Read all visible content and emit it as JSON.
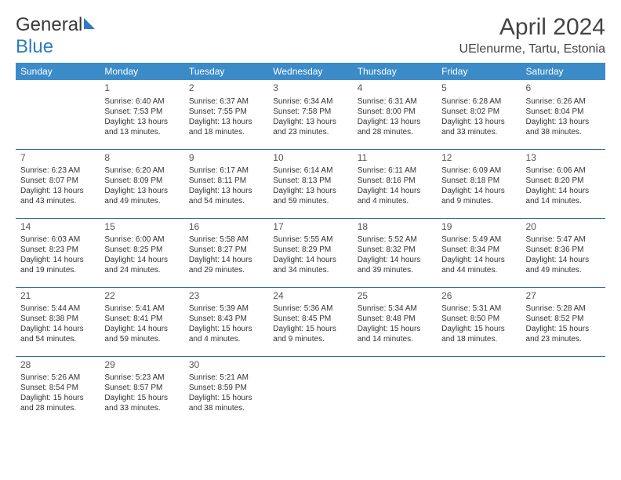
{
  "logo": {
    "word1": "General",
    "word2": "Blue"
  },
  "title": "April 2024",
  "location": "UElenurme, Tartu, Estonia",
  "colors": {
    "header_bg": "#3b8bc9",
    "header_fg": "#ffffff",
    "row_divider": "#2f6fa3",
    "logo_blue": "#2f7bbf",
    "text": "#333333"
  },
  "weekday_labels": [
    "Sunday",
    "Monday",
    "Tuesday",
    "Wednesday",
    "Thursday",
    "Friday",
    "Saturday"
  ],
  "weeks": [
    [
      null,
      {
        "day": "1",
        "sunrise": "Sunrise: 6:40 AM",
        "sunset": "Sunset: 7:53 PM",
        "daylight": "Daylight: 13 hours and 13 minutes."
      },
      {
        "day": "2",
        "sunrise": "Sunrise: 6:37 AM",
        "sunset": "Sunset: 7:55 PM",
        "daylight": "Daylight: 13 hours and 18 minutes."
      },
      {
        "day": "3",
        "sunrise": "Sunrise: 6:34 AM",
        "sunset": "Sunset: 7:58 PM",
        "daylight": "Daylight: 13 hours and 23 minutes."
      },
      {
        "day": "4",
        "sunrise": "Sunrise: 6:31 AM",
        "sunset": "Sunset: 8:00 PM",
        "daylight": "Daylight: 13 hours and 28 minutes."
      },
      {
        "day": "5",
        "sunrise": "Sunrise: 6:28 AM",
        "sunset": "Sunset: 8:02 PM",
        "daylight": "Daylight: 13 hours and 33 minutes."
      },
      {
        "day": "6",
        "sunrise": "Sunrise: 6:26 AM",
        "sunset": "Sunset: 8:04 PM",
        "daylight": "Daylight: 13 hours and 38 minutes."
      }
    ],
    [
      {
        "day": "7",
        "sunrise": "Sunrise: 6:23 AM",
        "sunset": "Sunset: 8:07 PM",
        "daylight": "Daylight: 13 hours and 43 minutes."
      },
      {
        "day": "8",
        "sunrise": "Sunrise: 6:20 AM",
        "sunset": "Sunset: 8:09 PM",
        "daylight": "Daylight: 13 hours and 49 minutes."
      },
      {
        "day": "9",
        "sunrise": "Sunrise: 6:17 AM",
        "sunset": "Sunset: 8:11 PM",
        "daylight": "Daylight: 13 hours and 54 minutes."
      },
      {
        "day": "10",
        "sunrise": "Sunrise: 6:14 AM",
        "sunset": "Sunset: 8:13 PM",
        "daylight": "Daylight: 13 hours and 59 minutes."
      },
      {
        "day": "11",
        "sunrise": "Sunrise: 6:11 AM",
        "sunset": "Sunset: 8:16 PM",
        "daylight": "Daylight: 14 hours and 4 minutes."
      },
      {
        "day": "12",
        "sunrise": "Sunrise: 6:09 AM",
        "sunset": "Sunset: 8:18 PM",
        "daylight": "Daylight: 14 hours and 9 minutes."
      },
      {
        "day": "13",
        "sunrise": "Sunrise: 6:06 AM",
        "sunset": "Sunset: 8:20 PM",
        "daylight": "Daylight: 14 hours and 14 minutes."
      }
    ],
    [
      {
        "day": "14",
        "sunrise": "Sunrise: 6:03 AM",
        "sunset": "Sunset: 8:23 PM",
        "daylight": "Daylight: 14 hours and 19 minutes."
      },
      {
        "day": "15",
        "sunrise": "Sunrise: 6:00 AM",
        "sunset": "Sunset: 8:25 PM",
        "daylight": "Daylight: 14 hours and 24 minutes."
      },
      {
        "day": "16",
        "sunrise": "Sunrise: 5:58 AM",
        "sunset": "Sunset: 8:27 PM",
        "daylight": "Daylight: 14 hours and 29 minutes."
      },
      {
        "day": "17",
        "sunrise": "Sunrise: 5:55 AM",
        "sunset": "Sunset: 8:29 PM",
        "daylight": "Daylight: 14 hours and 34 minutes."
      },
      {
        "day": "18",
        "sunrise": "Sunrise: 5:52 AM",
        "sunset": "Sunset: 8:32 PM",
        "daylight": "Daylight: 14 hours and 39 minutes."
      },
      {
        "day": "19",
        "sunrise": "Sunrise: 5:49 AM",
        "sunset": "Sunset: 8:34 PM",
        "daylight": "Daylight: 14 hours and 44 minutes."
      },
      {
        "day": "20",
        "sunrise": "Sunrise: 5:47 AM",
        "sunset": "Sunset: 8:36 PM",
        "daylight": "Daylight: 14 hours and 49 minutes."
      }
    ],
    [
      {
        "day": "21",
        "sunrise": "Sunrise: 5:44 AM",
        "sunset": "Sunset: 8:38 PM",
        "daylight": "Daylight: 14 hours and 54 minutes."
      },
      {
        "day": "22",
        "sunrise": "Sunrise: 5:41 AM",
        "sunset": "Sunset: 8:41 PM",
        "daylight": "Daylight: 14 hours and 59 minutes."
      },
      {
        "day": "23",
        "sunrise": "Sunrise: 5:39 AM",
        "sunset": "Sunset: 8:43 PM",
        "daylight": "Daylight: 15 hours and 4 minutes."
      },
      {
        "day": "24",
        "sunrise": "Sunrise: 5:36 AM",
        "sunset": "Sunset: 8:45 PM",
        "daylight": "Daylight: 15 hours and 9 minutes."
      },
      {
        "day": "25",
        "sunrise": "Sunrise: 5:34 AM",
        "sunset": "Sunset: 8:48 PM",
        "daylight": "Daylight: 15 hours and 14 minutes."
      },
      {
        "day": "26",
        "sunrise": "Sunrise: 5:31 AM",
        "sunset": "Sunset: 8:50 PM",
        "daylight": "Daylight: 15 hours and 18 minutes."
      },
      {
        "day": "27",
        "sunrise": "Sunrise: 5:28 AM",
        "sunset": "Sunset: 8:52 PM",
        "daylight": "Daylight: 15 hours and 23 minutes."
      }
    ],
    [
      {
        "day": "28",
        "sunrise": "Sunrise: 5:26 AM",
        "sunset": "Sunset: 8:54 PM",
        "daylight": "Daylight: 15 hours and 28 minutes."
      },
      {
        "day": "29",
        "sunrise": "Sunrise: 5:23 AM",
        "sunset": "Sunset: 8:57 PM",
        "daylight": "Daylight: 15 hours and 33 minutes."
      },
      {
        "day": "30",
        "sunrise": "Sunrise: 5:21 AM",
        "sunset": "Sunset: 8:59 PM",
        "daylight": "Daylight: 15 hours and 38 minutes."
      },
      null,
      null,
      null,
      null
    ]
  ]
}
